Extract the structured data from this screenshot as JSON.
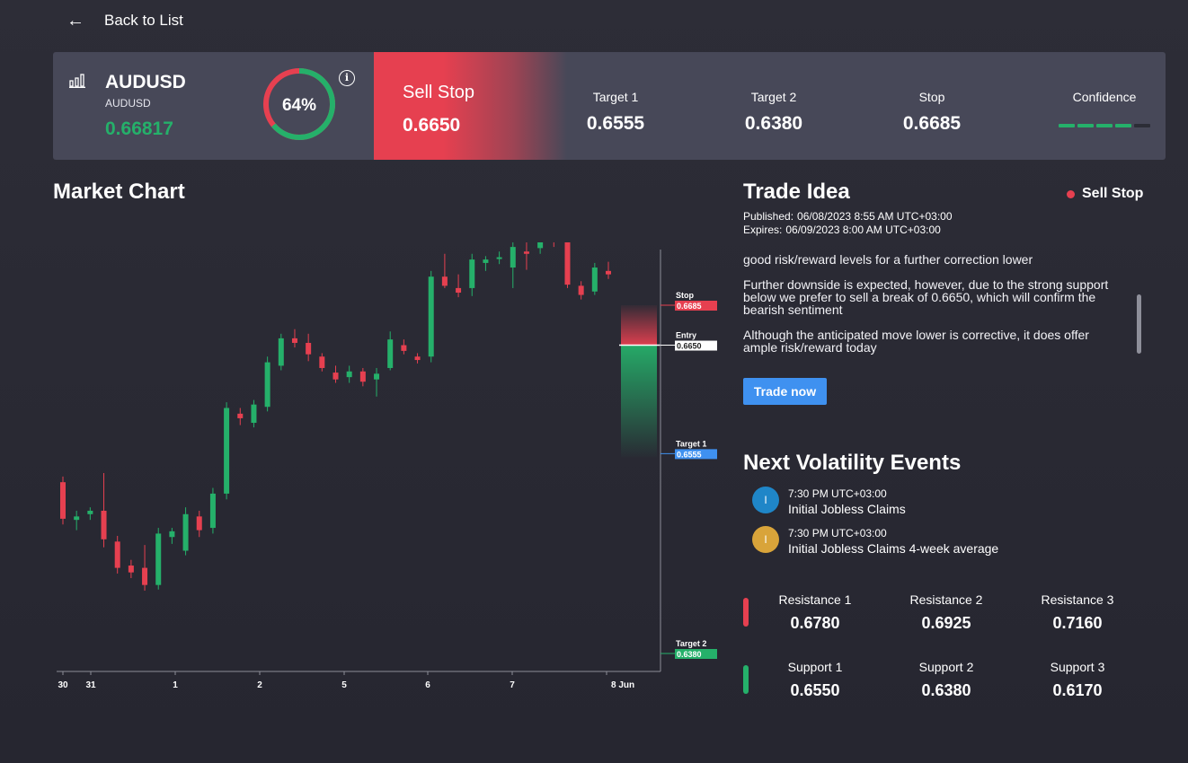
{
  "nav": {
    "back_label": "Back to List"
  },
  "header": {
    "symbol": "AUDUSD",
    "symbol_sub": "AUDUSD",
    "price": "0.66817",
    "gauge": {
      "value": 0.64,
      "label": "64%"
    },
    "signal": {
      "type": "Sell Stop",
      "entry": "0.6650"
    },
    "metrics": [
      {
        "label": "Target 1",
        "value": "0.6555"
      },
      {
        "label": "Target 2",
        "value": "0.6380"
      },
      {
        "label": "Stop",
        "value": "0.6685"
      }
    ],
    "confidence": {
      "label": "Confidence",
      "filled": 4,
      "total": 5
    }
  },
  "market_chart": {
    "title": "Market Chart",
    "chart_data": {
      "type": "candlestick",
      "x_ticks": [
        "30",
        "31",
        "1",
        "2",
        "5",
        "6",
        "7",
        "8 Jun"
      ],
      "levels": [
        {
          "name": "Stop",
          "value": 0.6685,
          "label": "0.6685",
          "color": "#e64050"
        },
        {
          "name": "Entry",
          "value": 0.665,
          "label": "0.6650",
          "color": "#ffffff"
        },
        {
          "name": "Target 1",
          "value": 0.6555,
          "label": "0.6555",
          "color": "#3f91f0"
        },
        {
          "name": "Target 2",
          "value": 0.638,
          "label": "0.6380",
          "color": "#25b06a"
        }
      ],
      "candles": [
        {
          "o": 0.653,
          "h": 0.6535,
          "l": 0.6493,
          "c": 0.6498
        },
        {
          "o": 0.6497,
          "h": 0.6505,
          "l": 0.6488,
          "c": 0.65
        },
        {
          "o": 0.6502,
          "h": 0.6508,
          "l": 0.6497,
          "c": 0.6505
        },
        {
          "o": 0.6505,
          "h": 0.6538,
          "l": 0.6473,
          "c": 0.648
        },
        {
          "o": 0.6478,
          "h": 0.6483,
          "l": 0.645,
          "c": 0.6455
        },
        {
          "o": 0.6457,
          "h": 0.6462,
          "l": 0.6446,
          "c": 0.6451
        },
        {
          "o": 0.6455,
          "h": 0.6475,
          "l": 0.6435,
          "c": 0.644
        },
        {
          "o": 0.644,
          "h": 0.649,
          "l": 0.6436,
          "c": 0.6485
        },
        {
          "o": 0.6482,
          "h": 0.649,
          "l": 0.6476,
          "c": 0.6487
        },
        {
          "o": 0.647,
          "h": 0.6508,
          "l": 0.6466,
          "c": 0.6502
        },
        {
          "o": 0.65,
          "h": 0.6505,
          "l": 0.6482,
          "c": 0.6488
        },
        {
          "o": 0.649,
          "h": 0.6525,
          "l": 0.6485,
          "c": 0.652
        },
        {
          "o": 0.652,
          "h": 0.66,
          "l": 0.6515,
          "c": 0.6595
        },
        {
          "o": 0.659,
          "h": 0.6595,
          "l": 0.658,
          "c": 0.6586
        },
        {
          "o": 0.6582,
          "h": 0.6602,
          "l": 0.6578,
          "c": 0.6598
        },
        {
          "o": 0.6596,
          "h": 0.664,
          "l": 0.6592,
          "c": 0.6635
        },
        {
          "o": 0.6632,
          "h": 0.666,
          "l": 0.6628,
          "c": 0.6656
        },
        {
          "o": 0.6656,
          "h": 0.6664,
          "l": 0.6648,
          "c": 0.6652
        },
        {
          "o": 0.6652,
          "h": 0.666,
          "l": 0.6636,
          "c": 0.6642
        },
        {
          "o": 0.664,
          "h": 0.6643,
          "l": 0.6627,
          "c": 0.663
        },
        {
          "o": 0.6626,
          "h": 0.6632,
          "l": 0.6617,
          "c": 0.662
        },
        {
          "o": 0.6622,
          "h": 0.6632,
          "l": 0.6617,
          "c": 0.6627
        },
        {
          "o": 0.6627,
          "h": 0.663,
          "l": 0.6614,
          "c": 0.6618
        },
        {
          "o": 0.662,
          "h": 0.663,
          "l": 0.6605,
          "c": 0.6625
        },
        {
          "o": 0.663,
          "h": 0.6662,
          "l": 0.6628,
          "c": 0.6655
        },
        {
          "o": 0.665,
          "h": 0.6655,
          "l": 0.6642,
          "c": 0.6645
        },
        {
          "o": 0.664,
          "h": 0.6643,
          "l": 0.6634,
          "c": 0.6637
        },
        {
          "o": 0.664,
          "h": 0.6715,
          "l": 0.6635,
          "c": 0.671
        },
        {
          "o": 0.671,
          "h": 0.673,
          "l": 0.67,
          "c": 0.6702
        },
        {
          "o": 0.67,
          "h": 0.6712,
          "l": 0.6692,
          "c": 0.6696
        },
        {
          "o": 0.67,
          "h": 0.673,
          "l": 0.6693,
          "c": 0.6725
        },
        {
          "o": 0.6722,
          "h": 0.6728,
          "l": 0.6715,
          "c": 0.6725
        },
        {
          "o": 0.6727,
          "h": 0.6732,
          "l": 0.6721,
          "c": 0.6727
        },
        {
          "o": 0.6718,
          "h": 0.674,
          "l": 0.67,
          "c": 0.6736
        },
        {
          "o": 0.6732,
          "h": 0.674,
          "l": 0.6716,
          "c": 0.673
        },
        {
          "o": 0.6735,
          "h": 0.6755,
          "l": 0.673,
          "c": 0.6748
        },
        {
          "o": 0.6745,
          "h": 0.676,
          "l": 0.6736,
          "c": 0.6743
        },
        {
          "o": 0.6745,
          "h": 0.6768,
          "l": 0.67,
          "c": 0.6703
        },
        {
          "o": 0.6702,
          "h": 0.6706,
          "l": 0.669,
          "c": 0.6694
        },
        {
          "o": 0.6697,
          "h": 0.6722,
          "l": 0.6694,
          "c": 0.6718
        },
        {
          "o": 0.6715,
          "h": 0.6723,
          "l": 0.6708,
          "c": 0.6712
        }
      ]
    }
  },
  "trade_idea": {
    "title": "Trade Idea",
    "badge": "Sell Stop",
    "published_label": "Published:",
    "published_value": "06/08/2023 8:55 AM UTC+03:00",
    "expires_label": "Expires:",
    "expires_value": "06/09/2023 8:00 AM UTC+03:00",
    "paragraphs": [
      "good risk/reward levels for a further correction lower",
      "Further downside is expected, however, due to the strong support below we prefer to sell a break of 0.6650, which will confirm the bearish sentiment",
      "Although the anticipated move lower is corrective, it does offer ample risk/reward today"
    ],
    "button_label": "Trade now"
  },
  "volatility": {
    "title": "Next Volatility Events",
    "events": [
      {
        "icon": "I",
        "color": "#1f86c8",
        "time": "7:30 PM UTC+03:00",
        "name": "Initial Jobless Claims"
      },
      {
        "icon": "I",
        "color": "#d9a43a",
        "time": "7:30 PM UTC+03:00",
        "name": "Initial Jobless Claims 4-week average"
      }
    ]
  },
  "levels": {
    "resistance": [
      {
        "label": "Resistance 1",
        "value": "0.6780"
      },
      {
        "label": "Resistance 2",
        "value": "0.6925"
      },
      {
        "label": "Resistance 3",
        "value": "0.7160"
      }
    ],
    "support": [
      {
        "label": "Support 1",
        "value": "0.6550"
      },
      {
        "label": "Support 2",
        "value": "0.6380"
      },
      {
        "label": "Support 3",
        "value": "0.6170"
      }
    ]
  },
  "colors": {
    "up": "#25b06a",
    "down": "#e64050",
    "accent": "#3f91f0",
    "panel": "#474858"
  }
}
